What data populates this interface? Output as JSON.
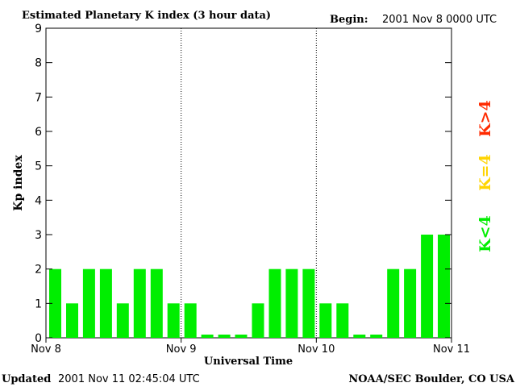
{
  "header": {
    "title": "Estimated Planetary K index (3 hour data)",
    "begin_label": "Begin:",
    "begin_value": "2001 Nov 8 0000 UTC"
  },
  "footer": {
    "updated_label": "Updated",
    "updated_value": "2001 Nov 11 02:45:04 UTC",
    "source": "NOAA/SEC Boulder, CO USA"
  },
  "legend": [
    {
      "label": "K>4",
      "color": "#ff2a00"
    },
    {
      "label": "K=4",
      "color": "#ffd400"
    },
    {
      "label": "K<4",
      "color": "#00ee00"
    }
  ],
  "chart_data": {
    "type": "bar",
    "title": "Estimated Planetary K index (3 hour data)",
    "xlabel": "Universal Time",
    "ylabel": "Kp index",
    "ylim": [
      0,
      9
    ],
    "y_ticks": [
      "0",
      "1",
      "2",
      "3",
      "4",
      "5",
      "6",
      "7",
      "8",
      "9"
    ],
    "x_ticks": [
      "Nov 8",
      "Nov 9",
      "Nov 10",
      "Nov 11"
    ],
    "day_dividers": [
      "Nov 9",
      "Nov 10"
    ],
    "interval_hours": 3,
    "bar_color": "#00ee00",
    "values": [
      2,
      1,
      2,
      2,
      1,
      2,
      2,
      1,
      1,
      0,
      0,
      0,
      1,
      2,
      2,
      2,
      1,
      1,
      0,
      0,
      2,
      2,
      3,
      3
    ]
  }
}
